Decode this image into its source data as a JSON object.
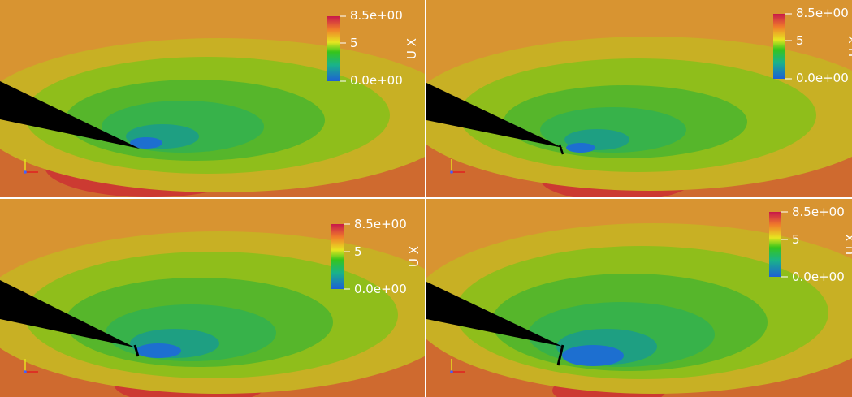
{
  "colors": {
    "ambient": "#d89431",
    "lower_field": "#cf6a2f",
    "jet": "#cc3a32",
    "outer_band": "#c8b024",
    "green_band": "#8fbe1b",
    "core_green": "#37b24a",
    "wake_blue": "#1d6fd0",
    "body": "#000000",
    "separator": "#ffffff"
  },
  "panels": [
    {
      "id": "top-left",
      "colorbar": {
        "title": "U X",
        "max_label": "8.5e+00",
        "mid_label": "5",
        "min_label": "0.0e+00"
      }
    },
    {
      "id": "top-right",
      "colorbar": {
        "title": "U X",
        "max_label": "8.5e+00",
        "mid_label": "5",
        "min_label": "0.0e+00"
      }
    },
    {
      "id": "bottom-left",
      "colorbar": {
        "title": "U X",
        "max_label": "8.5e+00",
        "mid_label": "5",
        "min_label": "0.0e+00"
      }
    },
    {
      "id": "bottom-right",
      "colorbar": {
        "title": "U X",
        "max_label": "8.5e+00",
        "mid_label": "5",
        "min_label": "0.0e+00"
      }
    }
  ]
}
